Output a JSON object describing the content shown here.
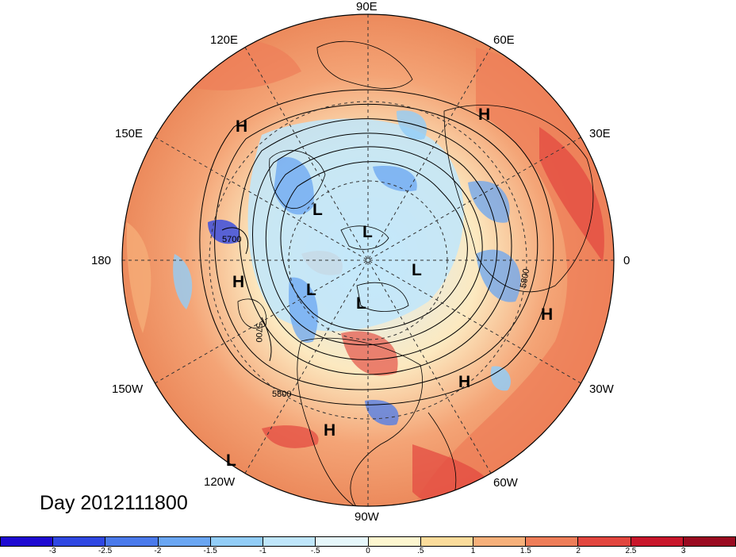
{
  "title": "Day 2012111800",
  "longitude_labels": [
    {
      "text": "90E",
      "lon": 90
    },
    {
      "text": "60E",
      "lon": 60
    },
    {
      "text": "30E",
      "lon": 30
    },
    {
      "text": "0",
      "lon": 0
    },
    {
      "text": "30W",
      "lon": -30
    },
    {
      "text": "60W",
      "lon": -60
    },
    {
      "text": "90W",
      "lon": -90
    },
    {
      "text": "120W",
      "lon": -120
    },
    {
      "text": "150W",
      "lon": -150
    },
    {
      "text": "180",
      "lon": 180
    },
    {
      "text": "150E",
      "lon": 150
    },
    {
      "text": "120E",
      "lon": 120
    }
  ],
  "pressure_centers": [
    {
      "type": "H",
      "text": "H"
    },
    {
      "type": "H",
      "text": "H"
    },
    {
      "type": "H",
      "text": "H"
    },
    {
      "type": "H",
      "text": "H"
    },
    {
      "type": "H",
      "text": "H"
    },
    {
      "type": "H",
      "text": "H"
    },
    {
      "type": "L",
      "text": "L"
    },
    {
      "type": "L",
      "text": "L"
    },
    {
      "type": "L",
      "text": "L"
    },
    {
      "type": "L",
      "text": "L"
    },
    {
      "type": "L",
      "text": "L"
    },
    {
      "type": "L",
      "text": "L"
    }
  ],
  "contour_labels": [
    {
      "text": "5700"
    },
    {
      "text": "5700"
    },
    {
      "text": "5800"
    },
    {
      "text": "5800"
    }
  ],
  "colorbar": {
    "tick_labels": [
      "-3",
      "-2.5",
      "-2",
      "-1.5",
      "-1",
      "-.5",
      "0",
      ".5",
      "1",
      "1.5",
      "2",
      "2.5",
      "3"
    ],
    "colors": [
      "#1e0ad2",
      "#2f47e2",
      "#4a7aeb",
      "#6aa6f2",
      "#92cdf7",
      "#bfe6fb",
      "#e6f7fb",
      "#fdf6cf",
      "#fbdc9b",
      "#f6b07a",
      "#ee7d58",
      "#e2463e",
      "#c8162a",
      "#9a0a20"
    ]
  },
  "colors": {
    "positive_anomaly": "#ee8a5e",
    "strong_positive": "#e24a3e",
    "negative_anomaly": "#8ec4ef",
    "neutral": "#fdf2d0"
  }
}
